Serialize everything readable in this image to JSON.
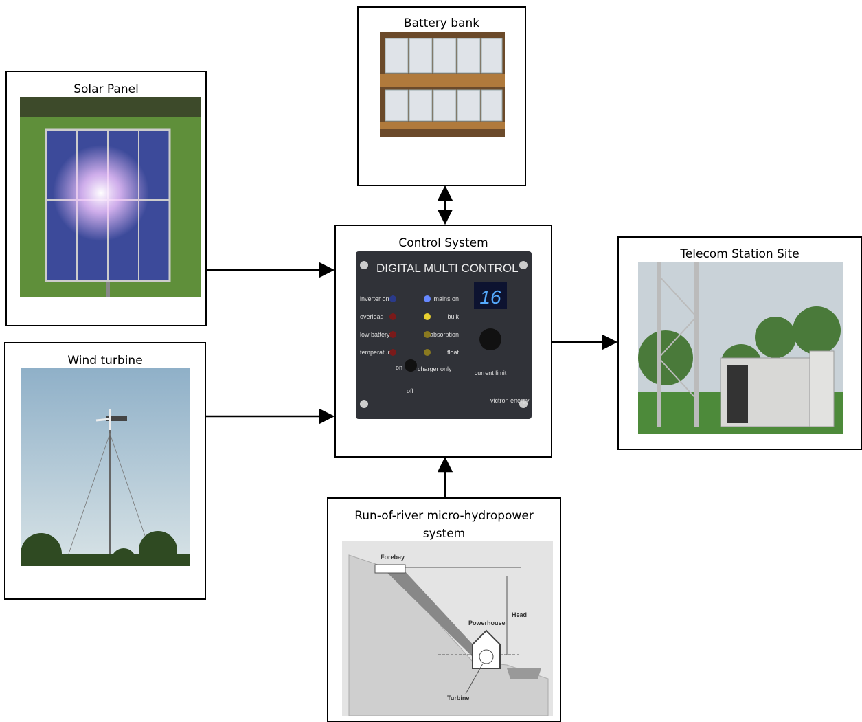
{
  "nodes": [
    {
      "label": "Battery bank"
    },
    {
      "label": "Solar Panel"
    },
    {
      "label": "Wind turbine"
    },
    {
      "label": "Control System",
      "image_texts": [
        "DIGITAL MULTI CONTROL",
        "16",
        "inverter on",
        "overload",
        "low battery",
        "temperature",
        "mains on",
        "bulk",
        "absorption",
        "float",
        "on",
        "off",
        "charger only",
        "current limit",
        "victron energy"
      ]
    },
    {
      "label": "Telecom Station Site"
    },
    {
      "label": "Run-of-river micro-hydropower system",
      "image_texts": [
        "Forebay",
        "Head",
        "Powerhouse",
        "Turbine"
      ]
    }
  ]
}
